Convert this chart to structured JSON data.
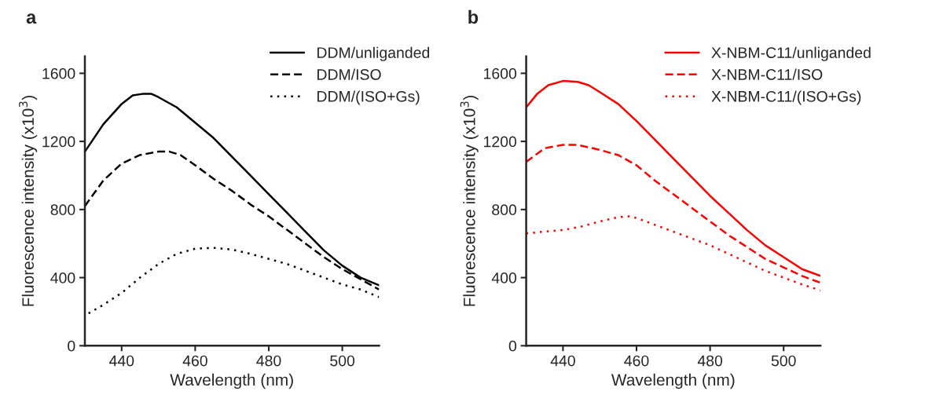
{
  "chart_data": [
    {
      "type": "line",
      "annotations": [
        "a"
      ],
      "xlabel": "Wavelength (nm)",
      "ylabel": "Fluorescence intensity (x10$^{3}$)",
      "xlim": [
        430,
        510
      ],
      "xticks": [
        440,
        460,
        480,
        500
      ],
      "ylim": [
        0,
        1700
      ],
      "yticks": [
        0,
        400,
        800,
        1200,
        1600
      ],
      "legend": "top right",
      "grid": false,
      "series": [
        {
          "name": "DDM/unliganded",
          "color": "#000000",
          "line_style": "solid",
          "x": [
            430,
            435,
            440,
            443,
            446,
            448,
            450,
            455,
            460,
            465,
            470,
            475,
            480,
            485,
            490,
            495,
            500,
            505,
            510
          ],
          "values": [
            1140,
            1300,
            1420,
            1470,
            1480,
            1480,
            1460,
            1400,
            1310,
            1220,
            1110,
            1000,
            890,
            780,
            670,
            560,
            470,
            400,
            355
          ]
        },
        {
          "name": "DDM/ISO",
          "color": "#000000",
          "line_style": "dashed",
          "x": [
            430,
            435,
            440,
            445,
            450,
            453,
            456,
            460,
            465,
            470,
            475,
            480,
            485,
            490,
            495,
            500,
            505,
            510
          ],
          "values": [
            820,
            970,
            1070,
            1120,
            1140,
            1140,
            1120,
            1060,
            980,
            910,
            830,
            760,
            680,
            600,
            520,
            450,
            390,
            330
          ]
        },
        {
          "name": "DDM/(ISO+Gs)",
          "color": "#000000",
          "line_style": "dotted",
          "x": [
            431,
            435,
            440,
            445,
            450,
            455,
            460,
            465,
            470,
            475,
            480,
            485,
            490,
            495,
            500,
            505,
            510
          ],
          "values": [
            190,
            240,
            310,
            400,
            480,
            540,
            570,
            575,
            565,
            540,
            510,
            480,
            440,
            400,
            360,
            330,
            285
          ]
        }
      ]
    },
    {
      "type": "line",
      "annotations": [
        "b"
      ],
      "xlabel": "Wavelength (nm)",
      "ylabel": "Fluorescence intensity (x10$^{3}$)",
      "xlim": [
        430,
        510
      ],
      "xticks": [
        440,
        460,
        480,
        500
      ],
      "ylim": [
        0,
        1700
      ],
      "yticks": [
        0,
        400,
        800,
        1200,
        1600
      ],
      "legend": "top right",
      "grid": false,
      "series": [
        {
          "name": "X-NBM-C11/unliganded",
          "color": "#ff0000",
          "line_style": "solid",
          "x": [
            430,
            433,
            436,
            440,
            444,
            447,
            450,
            455,
            460,
            465,
            470,
            475,
            480,
            485,
            490,
            495,
            500,
            505,
            510
          ],
          "values": [
            1400,
            1480,
            1530,
            1555,
            1550,
            1530,
            1490,
            1420,
            1320,
            1210,
            1100,
            990,
            880,
            780,
            680,
            590,
            520,
            450,
            410
          ]
        },
        {
          "name": "X-NBM-C11/ISO",
          "color": "#ff0000",
          "line_style": "dashed",
          "x": [
            430,
            435,
            440,
            444,
            450,
            455,
            460,
            465,
            470,
            475,
            480,
            485,
            490,
            495,
            500,
            505,
            510
          ],
          "values": [
            1080,
            1160,
            1180,
            1180,
            1150,
            1120,
            1060,
            970,
            890,
            810,
            730,
            650,
            580,
            510,
            460,
            410,
            370
          ]
        },
        {
          "name": "X-NBM-C11/(ISO+Gs)",
          "color": "#ff0000",
          "line_style": "dotted",
          "x": [
            430,
            435,
            440,
            445,
            450,
            455,
            458,
            460,
            465,
            470,
            475,
            480,
            485,
            490,
            495,
            500,
            505,
            510
          ],
          "values": [
            660,
            670,
            680,
            700,
            730,
            755,
            760,
            750,
            710,
            670,
            630,
            590,
            540,
            490,
            440,
            400,
            360,
            325
          ]
        }
      ]
    }
  ]
}
